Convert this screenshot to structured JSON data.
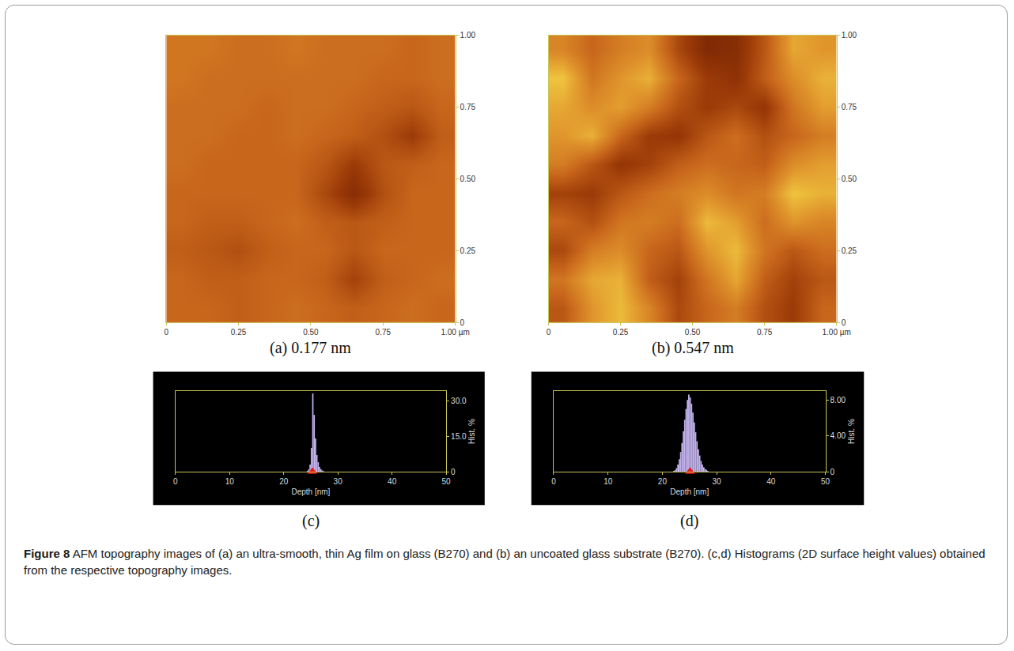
{
  "chart_data": [
    {
      "type": "heatmap",
      "panel": "(a)",
      "annotations": [
        "0.177 nm"
      ],
      "x": [
        0.05,
        0.15,
        0.25,
        0.35,
        0.45,
        0.55,
        0.65,
        0.75,
        0.85,
        0.95
      ],
      "y": [
        0.05,
        0.15,
        0.25,
        0.35,
        0.45,
        0.55,
        0.65,
        0.75,
        0.85,
        0.95
      ],
      "z": [
        [
          25.0,
          25.0,
          24.9,
          25.0,
          25.1,
          25.0,
          24.9,
          25.0,
          25.1,
          25.0
        ],
        [
          25.0,
          24.9,
          24.9,
          25.0,
          25.0,
          24.9,
          24.5,
          24.9,
          25.0,
          25.1
        ],
        [
          24.9,
          24.8,
          24.7,
          24.9,
          25.0,
          25.0,
          24.8,
          25.0,
          25.0,
          25.0
        ],
        [
          25.0,
          24.9,
          24.9,
          25.0,
          25.1,
          24.9,
          24.8,
          24.9,
          25.0,
          25.0
        ],
        [
          25.0,
          25.0,
          25.0,
          25.0,
          25.0,
          24.6,
          24.1,
          24.7,
          25.0,
          25.0
        ],
        [
          25.1,
          25.0,
          25.0,
          25.0,
          25.0,
          24.8,
          24.4,
          24.8,
          24.9,
          25.0
        ],
        [
          25.1,
          25.1,
          25.0,
          25.0,
          25.1,
          25.0,
          24.9,
          24.7,
          24.4,
          24.9
        ],
        [
          25.1,
          25.1,
          25.1,
          25.0,
          25.1,
          25.1,
          25.0,
          24.9,
          24.8,
          25.0
        ],
        [
          25.2,
          25.1,
          25.1,
          25.1,
          25.1,
          25.1,
          25.1,
          25.0,
          25.0,
          25.1
        ],
        [
          25.2,
          25.2,
          25.1,
          25.1,
          25.2,
          25.1,
          25.1,
          25.1,
          25.0,
          25.1
        ]
      ],
      "zlim": [
        23.5,
        26.5
      ],
      "xlim": [
        0,
        1
      ],
      "ylim": [
        0,
        1
      ],
      "xticks": [
        0,
        0.25,
        {
          "value": 0.5,
          "label": "0.50"
        },
        0.75,
        {
          "value": 1,
          "label": "1.00 µm"
        }
      ],
      "yticks": [
        0,
        0.25,
        {
          "value": 0.5,
          "label": "0.50"
        },
        0.75,
        {
          "value": 1,
          "label": "1.00"
        }
      ]
    },
    {
      "type": "heatmap",
      "panel": "(b)",
      "annotations": [
        "0.547 nm"
      ],
      "x": [
        0.05,
        0.15,
        0.25,
        0.35,
        0.45,
        0.55,
        0.65,
        0.75,
        0.85,
        0.95
      ],
      "y": [
        0.05,
        0.15,
        0.25,
        0.35,
        0.45,
        0.55,
        0.65,
        0.75,
        0.85,
        0.95
      ],
      "z": [
        [
          24.8,
          25.6,
          26.0,
          25.4,
          24.6,
          25.0,
          25.3,
          24.7,
          24.4,
          25.0
        ],
        [
          25.2,
          25.8,
          25.9,
          24.9,
          24.5,
          25.2,
          25.8,
          24.9,
          24.5,
          24.8
        ],
        [
          24.6,
          25.3,
          25.5,
          25.0,
          24.8,
          25.6,
          26.0,
          25.2,
          24.8,
          25.1
        ],
        [
          25.0,
          24.7,
          25.2,
          25.3,
          25.1,
          26.0,
          25.7,
          25.1,
          25.6,
          25.4
        ],
        [
          24.5,
          24.4,
          24.8,
          25.1,
          25.3,
          25.5,
          25.2,
          25.3,
          26.1,
          25.9
        ],
        [
          25.3,
          24.8,
          24.3,
          24.5,
          24.9,
          25.1,
          25.0,
          24.9,
          25.5,
          25.7
        ],
        [
          25.6,
          25.9,
          25.0,
          24.4,
          24.3,
          24.8,
          25.1,
          24.7,
          25.0,
          25.3
        ],
        [
          25.8,
          25.5,
          25.7,
          25.3,
          24.7,
          24.4,
          24.6,
          24.3,
          25.2,
          25.7
        ],
        [
          26.1,
          25.2,
          25.6,
          25.9,
          25.0,
          24.4,
          24.2,
          24.9,
          25.5,
          25.9
        ],
        [
          25.4,
          25.0,
          25.3,
          25.5,
          24.6,
          24.0,
          24.1,
          24.8,
          25.8,
          25.6
        ]
      ],
      "zlim": [
        23.5,
        26.5
      ],
      "xlim": [
        0,
        1
      ],
      "ylim": [
        0,
        1
      ],
      "xticks": [
        0,
        0.25,
        {
          "value": 0.5,
          "label": "0.50"
        },
        0.75,
        {
          "value": 1,
          "label": "1.00 µm"
        }
      ],
      "yticks": [
        0,
        0.25,
        {
          "value": 0.5,
          "label": "0.50"
        },
        0.75,
        {
          "value": 1,
          "label": "1.00"
        }
      ]
    },
    {
      "type": "histogram",
      "panel": "(c)",
      "x_label": "Depth [nm]",
      "y_label": "Hist. %",
      "bins": [
        23.5,
        23.75,
        24,
        24.25,
        24.5,
        24.75,
        25,
        25.25,
        25.5,
        25.75,
        26,
        26.25,
        26.5,
        26.75,
        27,
        27.25,
        27.5
      ],
      "counts": [
        0,
        0,
        0,
        0.3,
        1,
        3,
        10,
        33,
        24,
        14,
        7,
        4,
        2,
        1,
        0.5,
        0.2
      ],
      "peak": 25.3,
      "color": "#c4b4ee",
      "xlim": [
        0,
        50
      ],
      "xticks": [
        0,
        10,
        20,
        30,
        40,
        50
      ],
      "ylim": [
        0,
        34
      ],
      "yticks": [
        0,
        {
          "value": 15,
          "label": "15.0"
        },
        {
          "value": 30,
          "label": "30.0"
        }
      ]
    },
    {
      "type": "histogram",
      "panel": "(d)",
      "x_label": "Depth [nm]",
      "y_label": "Hist. %",
      "bins": [
        22,
        22.25,
        22.5,
        22.75,
        23,
        23.25,
        23.5,
        23.75,
        24,
        24.25,
        24.5,
        24.75,
        25,
        25.25,
        25.5,
        25.75,
        26,
        26.25,
        26.5,
        26.75,
        27,
        27.25,
        27.5,
        27.75,
        28,
        28.25,
        28.5
      ],
      "counts": [
        0.1,
        0.2,
        0.4,
        0.8,
        1.4,
        2.2,
        3.2,
        4.5,
        5.8,
        7.0,
        8.0,
        8.6,
        8.3,
        7.6,
        6.6,
        5.5,
        4.4,
        3.4,
        2.5,
        1.8,
        1.2,
        0.8,
        0.5,
        0.3,
        0.2,
        0.1
      ],
      "peak": 25.1,
      "color": "#c4b4ee",
      "xlim": [
        0,
        50
      ],
      "xticks": [
        0,
        10,
        20,
        30,
        40,
        50
      ],
      "ylim": [
        0,
        9
      ],
      "yticks": [
        0,
        {
          "value": 4,
          "label": "4.00"
        },
        {
          "value": 8,
          "label": "8.00"
        }
      ]
    }
  ],
  "caption": {
    "label": "Figure 8",
    "text": "AFM topography images of (a) an ultra-smooth, thin Ag film on glass (B270) and (b) an uncoated glass substrate (B270). (c,d) Histograms (2D surface height values) obtained from the respective topography images."
  }
}
